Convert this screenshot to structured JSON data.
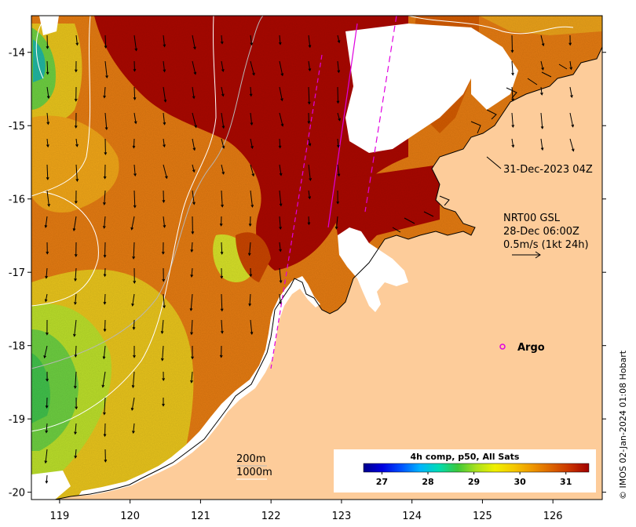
{
  "map": {
    "lon_range": [
      118.6,
      126.7
    ],
    "lat_range": [
      -20.1,
      -13.5
    ],
    "x_ticks": [
      "119",
      "120",
      "121",
      "122",
      "123",
      "124",
      "125",
      "126"
    ],
    "y_ticks": [
      "-14",
      "-15",
      "-16",
      "-17",
      "-18",
      "-19",
      "-20"
    ],
    "land_color": "#fdcc9a",
    "no_data_color": "#ffffff",
    "coast_color": "#000000"
  },
  "annotations": {
    "pass_time": "31-Dec-2023 04Z",
    "current_product": "NRT00 GSL",
    "current_time": "28-Dec 06:00Z",
    "current_scale": "0.5m/s (1kt 24h)",
    "contour_200": "200m",
    "contour_1000": "1000m",
    "argo_label": "Argo",
    "credit": "© IMOS 02-Jan-2024 01:08 Hobart"
  },
  "colorbar": {
    "title": "4h comp, p50, All Sats",
    "ticks": [
      "27",
      "28",
      "29",
      "30",
      "31"
    ],
    "range": [
      26.6,
      31.5
    ],
    "colors": [
      "#00008b",
      "#0000e0",
      "#0050ff",
      "#00b4ff",
      "#00dcb4",
      "#3cc83c",
      "#aae11e",
      "#f0f000",
      "#f5c800",
      "#ee9600",
      "#dc6400",
      "#c83200",
      "#a00000"
    ]
  },
  "legend": {
    "argo_color": "#e000e0",
    "contour_color": "#ffffff",
    "arrow_color": "#000000"
  }
}
